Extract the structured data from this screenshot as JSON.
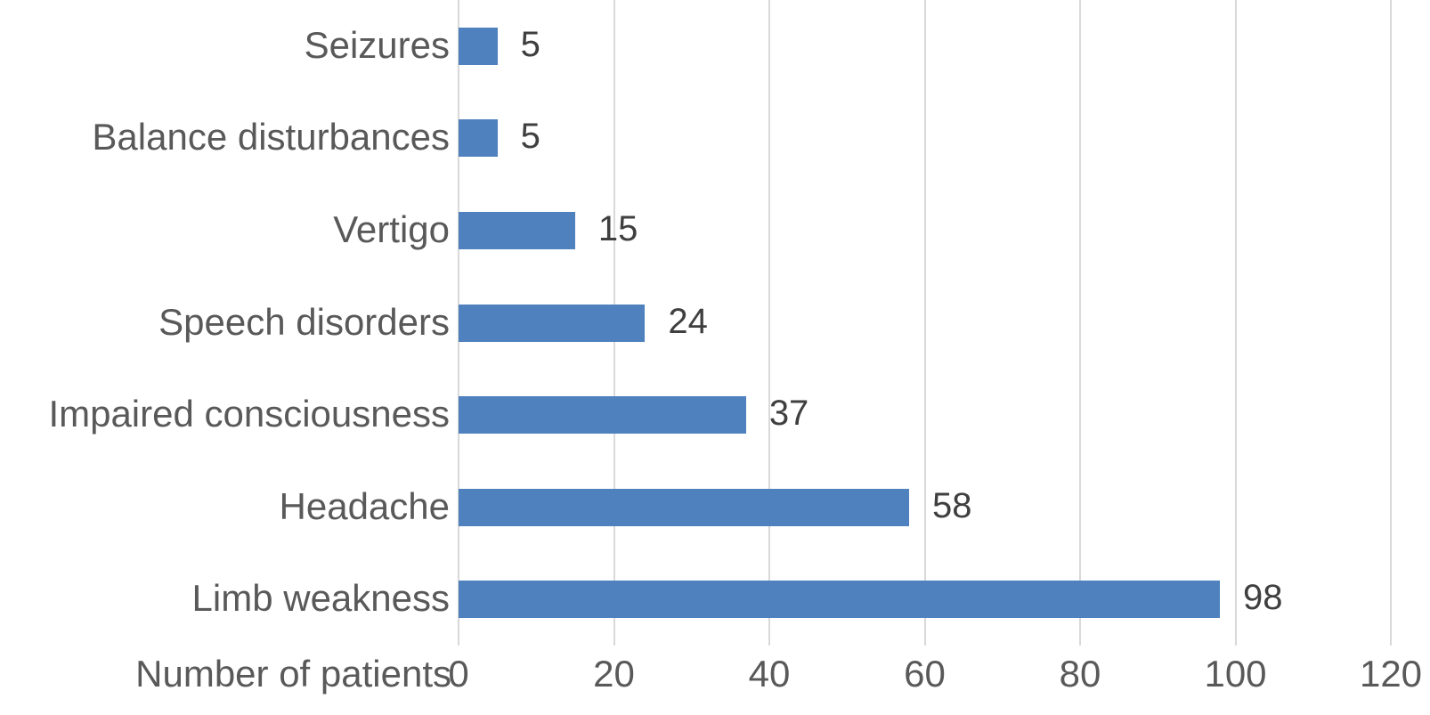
{
  "chart_data": {
    "type": "bar",
    "orientation": "horizontal",
    "title": "",
    "xlabel": "Number of patients",
    "ylabel": "",
    "categories_top_to_bottom": [
      "Seizures",
      "Balance disturbances",
      "Vertigo",
      "Speech disorders",
      "Impaired consciousness",
      "Headache",
      "Limb weakness"
    ],
    "values": [
      5,
      5,
      15,
      24,
      37,
      58,
      98
    ],
    "data_labels": [
      "5",
      "5",
      "15",
      "24",
      "37",
      "58",
      "98"
    ],
    "x_ticks": [
      0,
      20,
      40,
      60,
      80,
      100,
      120
    ],
    "x_tick_labels": [
      "0",
      "20",
      "40",
      "60",
      "80",
      "100",
      "120"
    ],
    "xlim": [
      0,
      120
    ],
    "grid": "vertical-lines-on",
    "legend": "none",
    "colors": {
      "bar_fill": "#4e81bd",
      "gridline": "#d9d9d9",
      "category_text": "#595959",
      "tick_text": "#595959",
      "value_text": "#3f3f3f",
      "background": "#ffffff"
    }
  }
}
